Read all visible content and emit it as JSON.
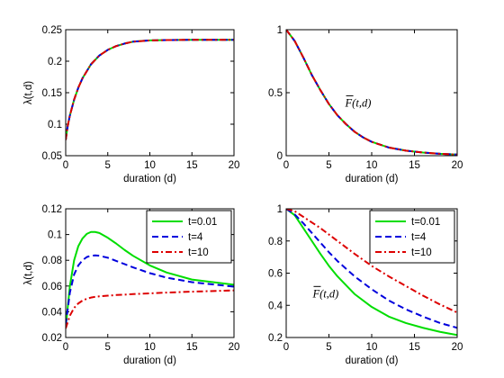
{
  "chart_data": [
    {
      "type": "line",
      "xlabel": "duration (d)",
      "ylabel": "λ(t,d)",
      "xlim": [
        0,
        20
      ],
      "ylim": [
        0.05,
        0.25
      ],
      "xticks": [
        "0",
        "5",
        "10",
        "15",
        "20"
      ],
      "yticks": [
        "0.05",
        "0.1",
        "0.15",
        "0.2",
        "0.25"
      ],
      "legend": null,
      "annotation": null,
      "x": [
        0,
        0.25,
        0.5,
        1,
        1.5,
        2,
        3,
        4,
        5,
        6,
        7,
        8,
        10,
        12,
        15,
        20
      ],
      "series": [
        {
          "color": "#00dd00",
          "dash": "solid",
          "values": [
            0.075,
            0.098,
            0.114,
            0.139,
            0.158,
            0.173,
            0.195,
            0.209,
            0.218,
            0.224,
            0.228,
            0.231,
            0.233,
            0.2335,
            0.234,
            0.234
          ]
        },
        {
          "color": "#0000dd",
          "dash": "dashed",
          "values": [
            0.075,
            0.098,
            0.114,
            0.139,
            0.158,
            0.173,
            0.195,
            0.209,
            0.218,
            0.224,
            0.228,
            0.231,
            0.233,
            0.2335,
            0.234,
            0.234
          ]
        },
        {
          "color": "#dd0000",
          "dash": "dashdot",
          "values": [
            0.075,
            0.098,
            0.114,
            0.139,
            0.158,
            0.173,
            0.195,
            0.209,
            0.218,
            0.224,
            0.228,
            0.231,
            0.233,
            0.2335,
            0.234,
            0.234
          ]
        }
      ]
    },
    {
      "type": "line",
      "xlabel": "duration (d)",
      "ylabel": "",
      "xlim": [
        0,
        20
      ],
      "ylim": [
        0,
        1
      ],
      "xticks": [
        "0",
        "5",
        "10",
        "15",
        "20"
      ],
      "yticks": [
        "0",
        "0.5",
        "1"
      ],
      "legend": null,
      "annotation": {
        "text": "F(t,d)",
        "overline": true,
        "x": 6.9,
        "y": 0.39
      },
      "x": [
        0,
        1,
        2,
        3,
        4,
        5,
        6,
        7,
        8,
        9,
        10,
        12,
        14,
        16,
        18,
        20
      ],
      "series": [
        {
          "color": "#00dd00",
          "dash": "solid",
          "values": [
            1.0,
            0.91,
            0.78,
            0.64,
            0.52,
            0.41,
            0.32,
            0.25,
            0.19,
            0.145,
            0.11,
            0.065,
            0.04,
            0.025,
            0.015,
            0.009
          ]
        },
        {
          "color": "#0000dd",
          "dash": "dashed",
          "values": [
            1.0,
            0.91,
            0.78,
            0.64,
            0.52,
            0.41,
            0.32,
            0.25,
            0.19,
            0.145,
            0.11,
            0.065,
            0.04,
            0.025,
            0.015,
            0.009
          ]
        },
        {
          "color": "#dd0000",
          "dash": "dashdot",
          "values": [
            1.0,
            0.91,
            0.78,
            0.64,
            0.52,
            0.41,
            0.32,
            0.25,
            0.19,
            0.145,
            0.11,
            0.065,
            0.04,
            0.025,
            0.015,
            0.009
          ]
        }
      ]
    },
    {
      "type": "line",
      "xlabel": "duration (d)",
      "ylabel": "λ(t,d)",
      "xlim": [
        0,
        20
      ],
      "ylim": [
        0.02,
        0.12
      ],
      "xticks": [
        "0",
        "5",
        "10",
        "15",
        "20"
      ],
      "yticks": [
        "0.02",
        "0.04",
        "0.06",
        "0.08",
        "0.1",
        "0.12"
      ],
      "legend": "top-right",
      "annotation": null,
      "x": [
        0,
        0.5,
        1,
        1.5,
        2,
        2.5,
        3,
        3.5,
        4,
        5,
        6,
        7,
        8,
        10,
        12,
        15,
        20
      ],
      "series": [
        {
          "name": "t=0.01",
          "color": "#00dd00",
          "dash": "solid",
          "values": [
            0.028,
            0.06,
            0.08,
            0.091,
            0.097,
            0.1005,
            0.102,
            0.102,
            0.1012,
            0.0975,
            0.093,
            0.088,
            0.0835,
            0.076,
            0.0705,
            0.065,
            0.061
          ]
        },
        {
          "name": "t=4",
          "color": "#0000dd",
          "dash": "dashed",
          "values": [
            0.03,
            0.055,
            0.069,
            0.076,
            0.08,
            0.0825,
            0.0835,
            0.0838,
            0.0835,
            0.082,
            0.0795,
            0.077,
            0.0745,
            0.07,
            0.0665,
            0.063,
            0.0595
          ]
        },
        {
          "name": "t=10",
          "color": "#dd0000",
          "dash": "dashdot",
          "values": [
            0.027,
            0.037,
            0.043,
            0.0465,
            0.0487,
            0.0501,
            0.051,
            0.0516,
            0.052,
            0.0525,
            0.053,
            0.0533,
            0.0537,
            0.0543,
            0.0549,
            0.0556,
            0.0566
          ]
        }
      ]
    },
    {
      "type": "line",
      "xlabel": "duration (d)",
      "ylabel": "",
      "xlim": [
        0,
        20
      ],
      "ylim": [
        0.2,
        1
      ],
      "xticks": [
        "0",
        "5",
        "10",
        "15",
        "20"
      ],
      "yticks": [
        "0.2",
        "0.4",
        "0.6",
        "0.8",
        "1"
      ],
      "legend": "top-right",
      "annotation": {
        "text": "F(t,d)",
        "overline": true,
        "x": 3.1,
        "y": 0.45
      },
      "x": [
        0,
        1,
        2,
        3,
        4,
        5,
        6,
        8,
        10,
        12,
        14,
        16,
        18,
        20
      ],
      "series": [
        {
          "name": "t=0.01",
          "color": "#00dd00",
          "dash": "solid",
          "values": [
            1.0,
            0.96,
            0.88,
            0.8,
            0.72,
            0.645,
            0.58,
            0.47,
            0.39,
            0.33,
            0.29,
            0.26,
            0.235,
            0.215
          ]
        },
        {
          "name": "t=4",
          "color": "#0000dd",
          "dash": "dashed",
          "values": [
            1.0,
            0.965,
            0.91,
            0.85,
            0.79,
            0.73,
            0.675,
            0.58,
            0.5,
            0.43,
            0.375,
            0.33,
            0.29,
            0.26
          ]
        },
        {
          "name": "t=10",
          "color": "#dd0000",
          "dash": "dashdot",
          "values": [
            1.0,
            0.985,
            0.95,
            0.915,
            0.88,
            0.84,
            0.8,
            0.72,
            0.645,
            0.58,
            0.52,
            0.46,
            0.405,
            0.355
          ]
        }
      ]
    }
  ]
}
